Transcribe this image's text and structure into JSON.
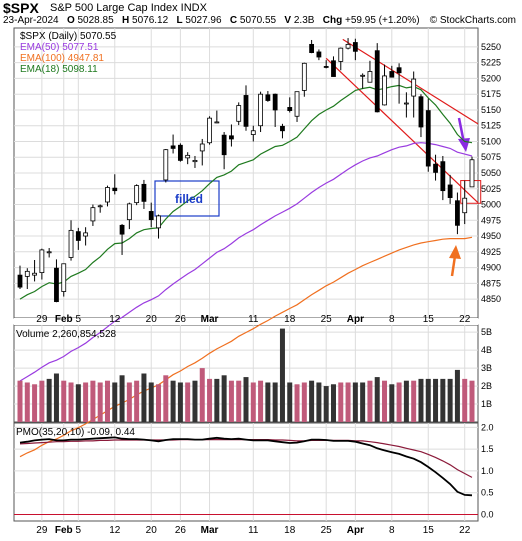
{
  "header": {
    "symbol": "$SPX",
    "name": "S&P 500 Large Cap Index  INDX",
    "date": "23-Apr-2024",
    "open_label": "O",
    "open": "5028.85",
    "high_label": "H",
    "high": "5076.12",
    "low_label": "L",
    "low": "5027.96",
    "close_label": "C",
    "close": "5070.55",
    "volume_label": "V",
    "volume": "2.3B",
    "change_label": "Chg",
    "change": "+59.95 (+1.20%)",
    "credit": "© StockCharts.com"
  },
  "legend": [
    {
      "text": "$SPX (Daily) 5070.55",
      "color": "#000000"
    },
    {
      "text": "EMA(50) 5077.51",
      "color": "#9a3ce0"
    },
    {
      "text": "EMA(100) 4947.81",
      "color": "#f07020"
    },
    {
      "text": "EMA(18) 5098.11",
      "color": "#1f7a1f"
    }
  ],
  "volume_legend": "Volume 2,260,854,528",
  "pmo_legend": "PMO(35,20,10) -0.09, 0.44",
  "annotation_text": "filled",
  "colors": {
    "up": "#000000",
    "down": "#000000",
    "vol_up": "#c05a7a",
    "vol_down": "#333333",
    "ema50": "#9a3ce0",
    "ema100": "#f07020",
    "ema18": "#1f7a1f",
    "channel": "#e01a1a",
    "box": "#1a3cc8",
    "arrow_purple": "#8a2be2",
    "arrow_orange": "#f07020",
    "pmo": "#000000",
    "pmo_signal": "#8b1a3a"
  },
  "x_labels": [
    "29",
    "Feb",
    "5",
    "12",
    "20",
    "26",
    "Mar",
    "11",
    "18",
    "25",
    "Apr",
    "8",
    "15",
    "22"
  ],
  "chart_data": [
    {
      "type": "candlestick",
      "title": "$SPX (Daily)",
      "ylim": [
        4820,
        5280
      ],
      "y_ticks": [
        4850,
        4875,
        4900,
        4925,
        4950,
        4975,
        5000,
        5025,
        5050,
        5075,
        5100,
        5125,
        5150,
        5175,
        5200,
        5225,
        5250
      ],
      "dates": [
        "01-24",
        "01-25",
        "01-26",
        "01-29",
        "01-30",
        "01-31",
        "02-01",
        "02-02",
        "02-05",
        "02-06",
        "02-07",
        "02-08",
        "02-09",
        "02-12",
        "02-13",
        "02-14",
        "02-15",
        "02-16",
        "02-20",
        "02-21",
        "02-22",
        "02-23",
        "02-26",
        "02-27",
        "02-28",
        "02-29",
        "03-01",
        "03-04",
        "03-05",
        "03-06",
        "03-07",
        "03-08",
        "03-11",
        "03-12",
        "03-13",
        "03-14",
        "03-15",
        "03-18",
        "03-19",
        "03-20",
        "03-21",
        "03-22",
        "03-25",
        "03-26",
        "03-27",
        "03-28",
        "04-01",
        "04-02",
        "04-03",
        "04-04",
        "04-05",
        "04-08",
        "04-09",
        "04-10",
        "04-11",
        "04-12",
        "04-15",
        "04-16",
        "04-17",
        "04-18",
        "04-19",
        "04-22",
        "04-23"
      ],
      "ohlc": [
        [
          4888,
          4903,
          4866,
          4869
        ],
        [
          4886,
          4899,
          4866,
          4894
        ],
        [
          4888,
          4912,
          4878,
          4891
        ],
        [
          4892,
          4930,
          4881,
          4928
        ],
        [
          4925,
          4931,
          4916,
          4925
        ],
        [
          4899,
          4913,
          4845,
          4846
        ],
        [
          4862,
          4906,
          4854,
          4906
        ],
        [
          4916,
          4975,
          4911,
          4959
        ],
        [
          4957,
          4963,
          4928,
          4943
        ],
        [
          4950,
          4964,
          4935,
          4955
        ],
        [
          4974,
          5000,
          4966,
          4995
        ],
        [
          4997,
          5000,
          4987,
          4998
        ],
        [
          5004,
          5030,
          4997,
          5027
        ],
        [
          5026,
          5048,
          5016,
          5022
        ],
        [
          4967,
          4969,
          4920,
          4953
        ],
        [
          4976,
          5003,
          4961,
          5001
        ],
        [
          5003,
          5032,
          4999,
          5030
        ],
        [
          5032,
          5039,
          4993,
          5005
        ],
        [
          4989,
          5003,
          4964,
          4976
        ],
        [
          4963,
          4984,
          4946,
          4982
        ],
        [
          5039,
          5088,
          5035,
          5087
        ],
        [
          5093,
          5111,
          5081,
          5089
        ],
        [
          5094,
          5097,
          5068,
          5070
        ],
        [
          5074,
          5083,
          5064,
          5078
        ],
        [
          5068,
          5077,
          5058,
          5070
        ],
        [
          5085,
          5104,
          5062,
          5096
        ],
        [
          5098,
          5140,
          5095,
          5137
        ],
        [
          5131,
          5149,
          5129,
          5131
        ],
        [
          5110,
          5115,
          5056,
          5079
        ],
        [
          5109,
          5127,
          5092,
          5104
        ],
        [
          5132,
          5162,
          5126,
          5157
        ],
        [
          5173,
          5189,
          5117,
          5124
        ],
        [
          5111,
          5125,
          5100,
          5117
        ],
        [
          5125,
          5179,
          5115,
          5175
        ],
        [
          5174,
          5180,
          5163,
          5165
        ],
        [
          5175,
          5176,
          5123,
          5150
        ],
        [
          5124,
          5128,
          5105,
          5117
        ],
        [
          5154,
          5170,
          5146,
          5149
        ],
        [
          5140,
          5179,
          5131,
          5179
        ],
        [
          5181,
          5225,
          5171,
          5224
        ],
        [
          5254,
          5261,
          5240,
          5241
        ],
        [
          5242,
          5246,
          5229,
          5234
        ],
        [
          5219,
          5229,
          5216,
          5218
        ],
        [
          5228,
          5235,
          5203,
          5203
        ],
        [
          5227,
          5249,
          5213,
          5248
        ],
        [
          5248,
          5264,
          5246,
          5254
        ],
        [
          5257,
          5263,
          5229,
          5243
        ],
        [
          5204,
          5208,
          5184,
          5205
        ],
        [
          5194,
          5228,
          5194,
          5211
        ],
        [
          5244,
          5256,
          5146,
          5147
        ],
        [
          5158,
          5222,
          5157,
          5204
        ],
        [
          5211,
          5220,
          5203,
          5202
        ],
        [
          5217,
          5224,
          5160,
          5209
        ],
        [
          5160,
          5178,
          5138,
          5161
        ],
        [
          5172,
          5211,
          5138,
          5199
        ],
        [
          5171,
          5175,
          5107,
          5123
        ],
        [
          5149,
          5168,
          5052,
          5061
        ],
        [
          5064,
          5079,
          5038,
          5051
        ],
        [
          5068,
          5077,
          5007,
          5022
        ],
        [
          5031,
          5047,
          5001,
          5011
        ],
        [
          5006,
          5019,
          4953,
          4967
        ],
        [
          4987,
          5038,
          4969,
          5010
        ],
        [
          5028,
          5076,
          5028,
          5071
        ]
      ],
      "ema18": [
        4850,
        4857,
        4862,
        4870,
        4876,
        4874,
        4877,
        4886,
        4891,
        4897,
        4908,
        4917,
        4929,
        4938,
        4939,
        4946,
        4955,
        4960,
        4962,
        4963,
        4977,
        4989,
        4997,
        5006,
        5013,
        5022,
        5033,
        5043,
        5047,
        5053,
        5063,
        5067,
        5071,
        5080,
        5086,
        5092,
        5094,
        5100,
        5107,
        5120,
        5133,
        5143,
        5150,
        5156,
        5165,
        5173,
        5181,
        5184,
        5186,
        5182,
        5184,
        5187,
        5189,
        5185,
        5187,
        5182,
        5169,
        5158,
        5143,
        5129,
        5111,
        5100,
        5098
      ],
      "ema50": [
        4720,
        4727,
        4734,
        4742,
        4749,
        4753,
        4759,
        4767,
        4773,
        4780,
        4789,
        4797,
        4806,
        4815,
        4821,
        4829,
        4837,
        4844,
        4849,
        4855,
        4865,
        4874,
        4882,
        4890,
        4897,
        4906,
        4915,
        4924,
        4930,
        4938,
        4947,
        4954,
        4960,
        4968,
        4975,
        4982,
        4988,
        4994,
        5001,
        5010,
        5019,
        5027,
        5034,
        5040,
        5048,
        5056,
        5063,
        5069,
        5074,
        5077,
        5082,
        5087,
        5091,
        5093,
        5097,
        5098,
        5097,
        5095,
        5092,
        5089,
        5083,
        5080,
        5077
      ],
      "ema100": [
        4600,
        4606,
        4611,
        4618,
        4624,
        4628,
        4634,
        4641,
        4646,
        4652,
        4659,
        4666,
        4673,
        4680,
        4685,
        4691,
        4698,
        4704,
        4709,
        4714,
        4722,
        4730,
        4736,
        4743,
        4749,
        4756,
        4764,
        4771,
        4777,
        4783,
        4791,
        4797,
        4803,
        4810,
        4816,
        4823,
        4829,
        4835,
        4841,
        4849,
        4857,
        4864,
        4871,
        4877,
        4884,
        4891,
        4897,
        4903,
        4908,
        4913,
        4918,
        4923,
        4928,
        4932,
        4936,
        4939,
        4941,
        4943,
        4945,
        4946,
        4946,
        4946,
        4948
      ]
    },
    {
      "type": "bar",
      "title": "Volume",
      "ylim": [
        0,
        5.4
      ],
      "y_tick_labels": [
        "5B",
        "4B",
        "3B",
        "2B",
        "1B"
      ],
      "values": [
        2.3,
        2.2,
        2.1,
        2.3,
        2.4,
        2.7,
        2.3,
        2.2,
        2.1,
        2.2,
        2.3,
        2.2,
        2.3,
        2.2,
        2.6,
        2.2,
        2.3,
        2.7,
        2.2,
        2.1,
        2.6,
        2.3,
        2.2,
        2.2,
        2.3,
        3.0,
        2.4,
        2.4,
        2.6,
        2.3,
        2.3,
        2.5,
        2.2,
        2.3,
        2.2,
        2.2,
        5.2,
        2.2,
        2.1,
        2.2,
        2.3,
        2.2,
        2.0,
        2.1,
        2.2,
        2.2,
        2.2,
        2.2,
        2.3,
        2.5,
        2.3,
        2.1,
        2.2,
        2.3,
        2.3,
        2.4,
        2.4,
        2.4,
        2.4,
        2.4,
        2.9,
        2.4,
        2.3
      ],
      "up_days": [
        true,
        true,
        true,
        true,
        false,
        false,
        true,
        true,
        false,
        true,
        true,
        true,
        true,
        false,
        false,
        true,
        true,
        false,
        false,
        true,
        true,
        false,
        false,
        true,
        false,
        true,
        true,
        false,
        false,
        true,
        true,
        false,
        true,
        true,
        false,
        false,
        false,
        false,
        true,
        true,
        false,
        false,
        false,
        false,
        true,
        true,
        false,
        false,
        true,
        false,
        true,
        false,
        true,
        false,
        true,
        false,
        false,
        false,
        false,
        false,
        false,
        true,
        true
      ]
    },
    {
      "type": "line",
      "title": "PMO(35,20,10)",
      "ylim": [
        -0.15,
        2.1
      ],
      "y_ticks": [
        0.0,
        0.5,
        1.0,
        1.5,
        2.0
      ],
      "series": [
        {
          "name": "PMO",
          "values": [
            1.65,
            1.67,
            1.7,
            1.72,
            1.73,
            1.7,
            1.7,
            1.72,
            1.72,
            1.73,
            1.74,
            1.75,
            1.76,
            1.77,
            1.74,
            1.73,
            1.73,
            1.72,
            1.7,
            1.68,
            1.71,
            1.73,
            1.73,
            1.73,
            1.72,
            1.72,
            1.74,
            1.76,
            1.74,
            1.73,
            1.74,
            1.72,
            1.7,
            1.7,
            1.7,
            1.68,
            1.66,
            1.64,
            1.65,
            1.68,
            1.72,
            1.72,
            1.71,
            1.69,
            1.69,
            1.69,
            1.67,
            1.63,
            1.59,
            1.52,
            1.47,
            1.43,
            1.39,
            1.33,
            1.28,
            1.2,
            1.09,
            0.97,
            0.84,
            0.7,
            0.52,
            0.45,
            0.44
          ]
        },
        {
          "name": "Signal",
          "values": [
            1.62,
            1.63,
            1.64,
            1.65,
            1.66,
            1.67,
            1.67,
            1.68,
            1.68,
            1.69,
            1.69,
            1.7,
            1.7,
            1.71,
            1.71,
            1.71,
            1.71,
            1.71,
            1.71,
            1.71,
            1.71,
            1.71,
            1.72,
            1.72,
            1.72,
            1.72,
            1.72,
            1.72,
            1.72,
            1.72,
            1.72,
            1.72,
            1.72,
            1.72,
            1.72,
            1.71,
            1.71,
            1.7,
            1.69,
            1.69,
            1.7,
            1.7,
            1.7,
            1.7,
            1.7,
            1.7,
            1.69,
            1.69,
            1.67,
            1.65,
            1.62,
            1.59,
            1.56,
            1.52,
            1.48,
            1.44,
            1.38,
            1.31,
            1.23,
            1.14,
            1.03,
            0.94,
            0.85
          ]
        }
      ]
    }
  ]
}
